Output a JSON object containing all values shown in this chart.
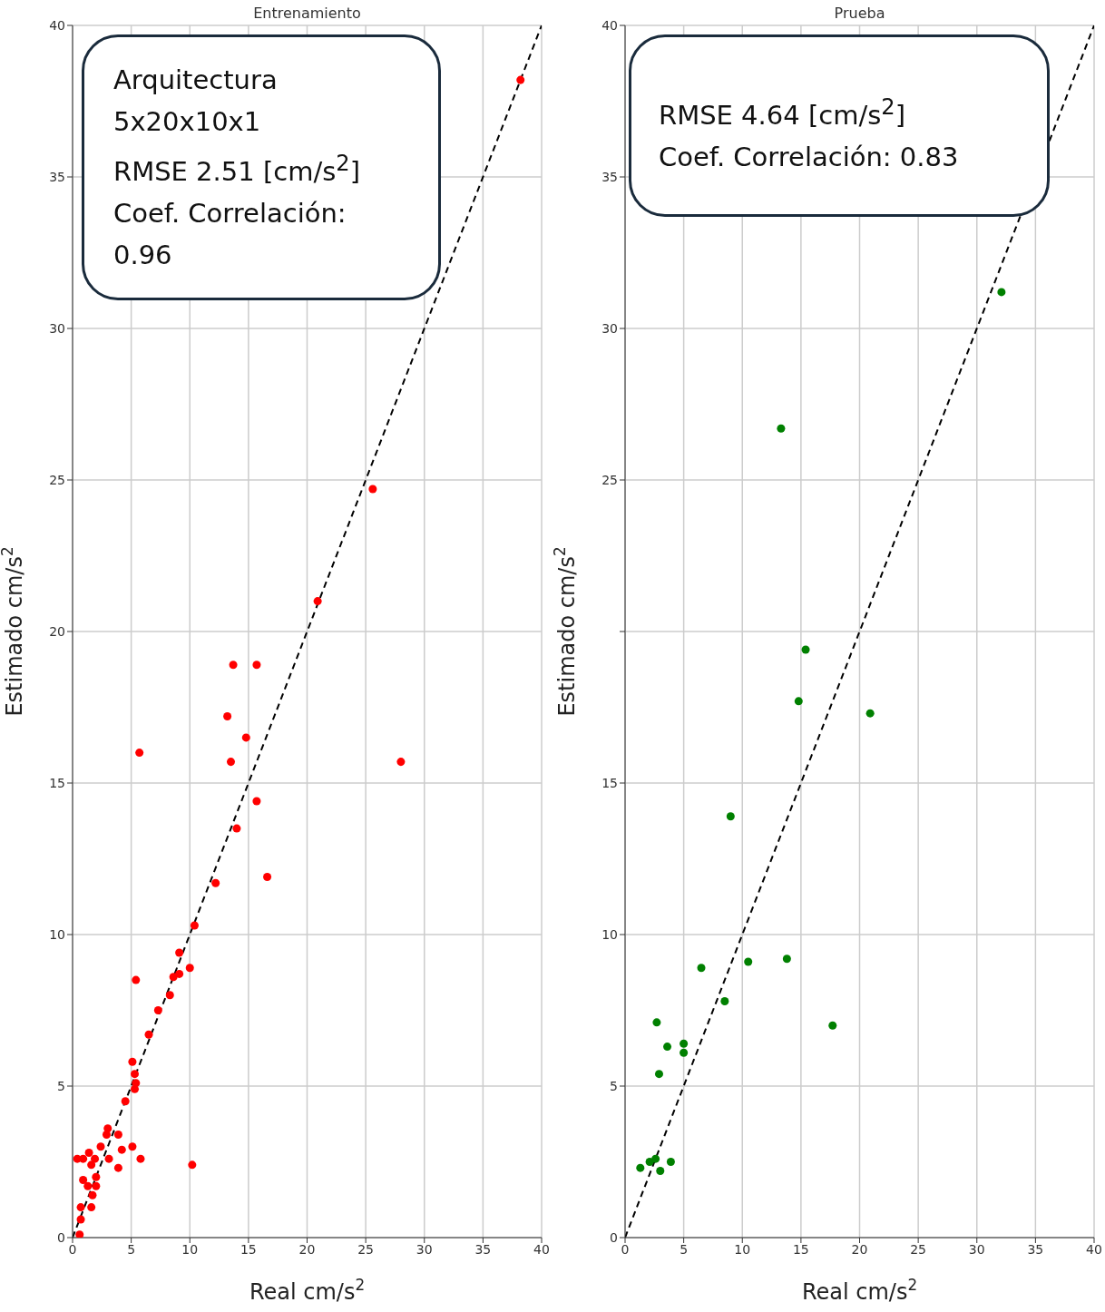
{
  "chart_data": [
    {
      "type": "scatter",
      "title": "Entrenamiento",
      "xlabel": "Real cm/s$^{2}$",
      "ylabel": "Estimado cm/s$^{2}$",
      "xlim": [
        0,
        40
      ],
      "ylim": [
        0,
        40
      ],
      "xticks": [
        0,
        5,
        10,
        15,
        20,
        25,
        30,
        35,
        40
      ],
      "yticks": [
        0,
        5,
        10,
        15,
        20,
        25,
        30,
        35,
        40
      ],
      "grid": true,
      "annotations": [
        "Arquitectura",
        "5x20x10x1",
        "RMSE 2.51 [cm/s$^{2}$]",
        "Coef. Correlación:",
        "0.96"
      ],
      "series": [
        {
          "type": "scatter",
          "color": "#ff0000",
          "marker": "circle",
          "x": [
            38.2,
            25.6,
            20.9,
            13.7,
            15.7,
            13.2,
            14.8,
            5.7,
            13.5,
            28.0,
            15.7,
            14.0,
            16.6,
            12.2,
            10.4,
            9.1,
            5.4,
            10.0,
            9.1,
            8.6,
            8.3,
            7.3,
            6.5,
            5.1,
            5.3,
            5.4,
            5.3,
            4.5,
            3.0,
            3.9,
            2.9,
            2.4,
            4.2,
            5.1,
            5.8,
            10.2,
            3.9,
            3.1,
            1.4,
            0.4,
            0.9,
            1.9,
            1.6,
            0.9,
            2.0,
            1.3,
            2.0,
            1.7,
            0.7,
            1.6,
            0.7,
            0.6
          ],
          "values": [
            38.2,
            24.7,
            21.0,
            18.9,
            18.9,
            17.2,
            16.5,
            16.0,
            15.7,
            15.7,
            14.4,
            13.5,
            11.9,
            11.7,
            10.3,
            9.4,
            8.5,
            8.9,
            8.7,
            8.6,
            8.0,
            7.5,
            6.7,
            5.8,
            5.4,
            5.1,
            4.9,
            4.5,
            3.6,
            3.4,
            3.4,
            3.0,
            2.9,
            3.0,
            2.6,
            2.4,
            2.3,
            2.6,
            2.8,
            2.6,
            2.6,
            2.6,
            2.4,
            1.9,
            2.0,
            1.7,
            1.7,
            1.4,
            1.0,
            1.0,
            0.6,
            0.1
          ]
        },
        {
          "type": "line",
          "color": "#000000",
          "marker": "none",
          "line_style": "dashed",
          "x": [
            0,
            40
          ],
          "values": [
            0,
            40
          ]
        }
      ]
    },
    {
      "type": "scatter",
      "title": "Prueba",
      "xlabel": "Real cm/s$^{2}$",
      "ylabel": "Estimado cm/s$^{2}$",
      "xlim": [
        0,
        40
      ],
      "ylim": [
        0,
        40
      ],
      "xticks": [
        0,
        5,
        10,
        15,
        20,
        25,
        30,
        35,
        40
      ],
      "yticks": [
        0,
        5,
        10,
        15,
        {
          "value": 20,
          "label": null
        },
        25,
        30,
        35,
        40
      ],
      "grid": true,
      "annotations": [
        "RMSE 4.64 [cm/s$^{2}$]",
        "Coef. Correlación: 0.83"
      ],
      "series": [
        {
          "type": "scatter",
          "color": "#008000",
          "marker": "circle",
          "x": [
            32.1,
            13.3,
            15.4,
            14.8,
            20.9,
            9.0,
            6.5,
            10.5,
            13.8,
            8.5,
            17.7,
            2.7,
            3.6,
            5.0,
            5.0,
            2.9,
            1.3,
            2.1,
            2.6,
            3.0,
            3.9
          ],
          "values": [
            31.2,
            26.7,
            19.4,
            17.7,
            17.3,
            13.9,
            8.9,
            9.1,
            9.2,
            7.8,
            7.0,
            7.1,
            6.3,
            6.4,
            6.1,
            5.4,
            2.3,
            2.5,
            2.6,
            2.2,
            2.5
          ]
        },
        {
          "type": "line",
          "color": "#000000",
          "marker": "none",
          "line_style": "dashed",
          "x": [
            0,
            40
          ],
          "values": [
            0,
            40
          ]
        }
      ]
    }
  ]
}
